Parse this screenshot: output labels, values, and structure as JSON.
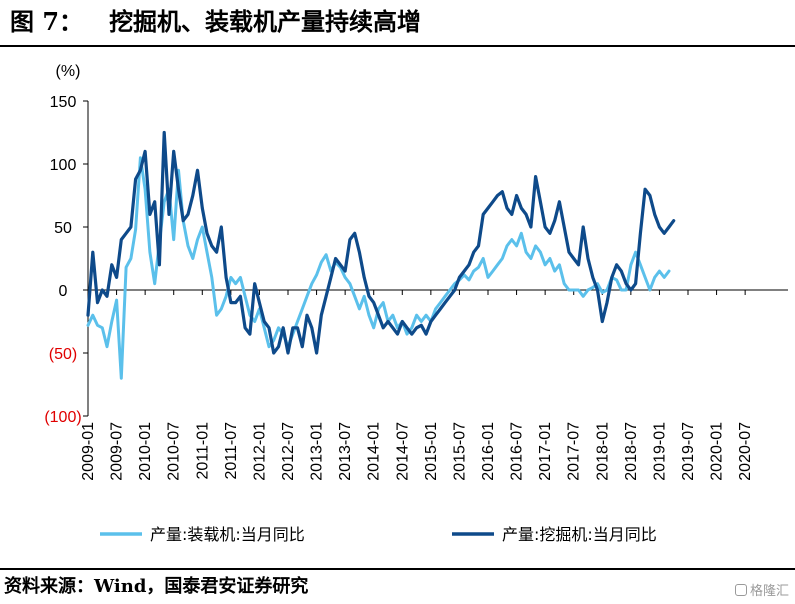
{
  "figure": {
    "label": "图 7：",
    "title": "挖掘机、装载机产量持续高增",
    "source": "资料来源：Wind，国泰君安证券研究",
    "watermark": "格隆汇"
  },
  "chart_data": {
    "type": "line",
    "title": "挖掘机、装载机产量持续高增",
    "ylabel": "(%)",
    "xlabel": "",
    "ylim": [
      -100,
      150
    ],
    "yticks": [
      -100,
      -50,
      0,
      50,
      100,
      150
    ],
    "ytick_labels": [
      "(100)",
      "(50)",
      "0",
      "50",
      "100",
      "150"
    ],
    "negative_tick_color": "#e00000",
    "xlim": [
      0,
      147
    ],
    "xtick_positions": [
      0,
      6,
      12,
      18,
      24,
      30,
      36,
      42,
      48,
      54,
      60,
      66,
      72,
      78,
      84,
      90,
      96,
      102,
      108,
      114,
      120,
      126,
      132,
      138
    ],
    "xtick_labels": [
      "2009-01",
      "2009-07",
      "2010-01",
      "2010-07",
      "2011-01",
      "2011-07",
      "2012-01",
      "2012-07",
      "2013-01",
      "2013-07",
      "2014-01",
      "2014-07",
      "2015-01",
      "2015-07",
      "2016-01",
      "2016-07",
      "2017-01",
      "2017-07",
      "2018-01",
      "2018-07",
      "2019-01",
      "2019-07",
      "2020-01",
      "2020-07"
    ],
    "grid": false,
    "legend_position": "bottom",
    "series": [
      {
        "name": "产量:装载机:当月同比",
        "color": "#5bc0eb",
        "points": [
          [
            0,
            -28
          ],
          [
            1,
            -20
          ],
          [
            2,
            -28
          ],
          [
            3,
            -30
          ],
          [
            4,
            -45
          ],
          [
            5,
            -25
          ],
          [
            6,
            -8
          ],
          [
            7,
            -70
          ],
          [
            8,
            18
          ],
          [
            9,
            25
          ],
          [
            10,
            48
          ],
          [
            11,
            105
          ],
          [
            12,
            80
          ],
          [
            13,
            30
          ],
          [
            14,
            5
          ],
          [
            15,
            38
          ],
          [
            16,
            70
          ],
          [
            17,
            80
          ],
          [
            18,
            40
          ],
          [
            19,
            95
          ],
          [
            20,
            55
          ],
          [
            21,
            35
          ],
          [
            22,
            25
          ],
          [
            23,
            40
          ],
          [
            24,
            50
          ],
          [
            25,
            30
          ],
          [
            26,
            10
          ],
          [
            27,
            -20
          ],
          [
            28,
            -15
          ],
          [
            29,
            -5
          ],
          [
            30,
            10
          ],
          [
            31,
            5
          ],
          [
            32,
            10
          ],
          [
            33,
            -5
          ],
          [
            34,
            -20
          ],
          [
            35,
            -25
          ],
          [
            36,
            -15
          ],
          [
            37,
            -30
          ],
          [
            38,
            -45
          ],
          [
            39,
            -40
          ],
          [
            40,
            -30
          ],
          [
            41,
            -35
          ],
          [
            42,
            -45
          ],
          [
            43,
            -35
          ],
          [
            44,
            -25
          ],
          [
            45,
            -15
          ],
          [
            46,
            -5
          ],
          [
            47,
            5
          ],
          [
            48,
            12
          ],
          [
            49,
            22
          ],
          [
            50,
            28
          ],
          [
            51,
            15
          ],
          [
            52,
            22
          ],
          [
            53,
            18
          ],
          [
            54,
            10
          ],
          [
            55,
            5
          ],
          [
            56,
            -5
          ],
          [
            57,
            -15
          ],
          [
            58,
            -5
          ],
          [
            59,
            -20
          ],
          [
            60,
            -30
          ],
          [
            61,
            -15
          ],
          [
            62,
            -10
          ],
          [
            63,
            -25
          ],
          [
            64,
            -20
          ],
          [
            65,
            -30
          ],
          [
            66,
            -25
          ],
          [
            67,
            -35
          ],
          [
            68,
            -30
          ],
          [
            69,
            -20
          ],
          [
            70,
            -25
          ],
          [
            71,
            -20
          ],
          [
            72,
            -25
          ],
          [
            73,
            -15
          ],
          [
            74,
            -10
          ],
          [
            75,
            -5
          ],
          [
            76,
            0
          ],
          [
            77,
            5
          ],
          [
            78,
            8
          ],
          [
            79,
            12
          ],
          [
            80,
            8
          ],
          [
            81,
            15
          ],
          [
            82,
            18
          ],
          [
            83,
            25
          ],
          [
            84,
            10
          ],
          [
            85,
            15
          ],
          [
            86,
            20
          ],
          [
            87,
            25
          ],
          [
            88,
            35
          ],
          [
            89,
            40
          ],
          [
            90,
            35
          ],
          [
            91,
            45
          ],
          [
            92,
            30
          ],
          [
            93,
            25
          ],
          [
            94,
            35
          ],
          [
            95,
            30
          ],
          [
            96,
            20
          ],
          [
            97,
            25
          ],
          [
            98,
            15
          ],
          [
            99,
            20
          ],
          [
            100,
            5
          ],
          [
            101,
            0
          ],
          [
            102,
            0
          ],
          [
            103,
            0
          ],
          [
            104,
            -5
          ],
          [
            105,
            0
          ],
          [
            106,
            2
          ],
          [
            107,
            5
          ],
          [
            108,
            -2
          ],
          [
            109,
            0
          ],
          [
            110,
            10
          ],
          [
            111,
            8
          ],
          [
            112,
            0
          ],
          [
            113,
            0
          ],
          [
            114,
            20
          ],
          [
            115,
            30
          ],
          [
            116,
            20
          ],
          [
            117,
            10
          ],
          [
            118,
            0
          ],
          [
            119,
            10
          ],
          [
            120,
            15
          ],
          [
            121,
            10
          ],
          [
            122,
            15
          ]
        ]
      },
      {
        "name": "产量:挖掘机:当月同比",
        "color": "#0e4a8a",
        "points": [
          [
            0,
            -20
          ],
          [
            1,
            30
          ],
          [
            2,
            -10
          ],
          [
            3,
            0
          ],
          [
            4,
            -5
          ],
          [
            5,
            20
          ],
          [
            6,
            10
          ],
          [
            7,
            40
          ],
          [
            8,
            45
          ],
          [
            9,
            50
          ],
          [
            10,
            88
          ],
          [
            11,
            95
          ],
          [
            12,
            110
          ],
          [
            13,
            60
          ],
          [
            14,
            70
          ],
          [
            15,
            20
          ],
          [
            16,
            125
          ],
          [
            17,
            60
          ],
          [
            18,
            110
          ],
          [
            19,
            80
          ],
          [
            20,
            55
          ],
          [
            21,
            60
          ],
          [
            22,
            75
          ],
          [
            23,
            95
          ],
          [
            24,
            65
          ],
          [
            25,
            45
          ],
          [
            26,
            35
          ],
          [
            27,
            30
          ],
          [
            28,
            50
          ],
          [
            29,
            10
          ],
          [
            30,
            -10
          ],
          [
            31,
            -10
          ],
          [
            32,
            -5
          ],
          [
            33,
            -30
          ],
          [
            34,
            -35
          ],
          [
            35,
            5
          ],
          [
            36,
            -10
          ],
          [
            37,
            -25
          ],
          [
            38,
            -30
          ],
          [
            39,
            -50
          ],
          [
            40,
            -45
          ],
          [
            41,
            -30
          ],
          [
            42,
            -50
          ],
          [
            43,
            -30
          ],
          [
            44,
            -30
          ],
          [
            45,
            -45
          ],
          [
            46,
            -20
          ],
          [
            47,
            -30
          ],
          [
            48,
            -50
          ],
          [
            49,
            -20
          ],
          [
            50,
            -5
          ],
          [
            51,
            10
          ],
          [
            52,
            25
          ],
          [
            53,
            20
          ],
          [
            54,
            15
          ],
          [
            55,
            40
          ],
          [
            56,
            45
          ],
          [
            57,
            30
          ],
          [
            58,
            10
          ],
          [
            59,
            -5
          ],
          [
            60,
            -10
          ],
          [
            61,
            -20
          ],
          [
            62,
            -30
          ],
          [
            63,
            -25
          ],
          [
            64,
            -30
          ],
          [
            65,
            -35
          ],
          [
            66,
            -25
          ],
          [
            67,
            -30
          ],
          [
            68,
            -35
          ],
          [
            69,
            -30
          ],
          [
            70,
            -28
          ],
          [
            71,
            -35
          ],
          [
            72,
            -25
          ],
          [
            73,
            -20
          ],
          [
            74,
            -15
          ],
          [
            75,
            -10
          ],
          [
            76,
            -5
          ],
          [
            77,
            0
          ],
          [
            78,
            10
          ],
          [
            79,
            15
          ],
          [
            80,
            20
          ],
          [
            81,
            30
          ],
          [
            82,
            35
          ],
          [
            83,
            60
          ],
          [
            84,
            65
          ],
          [
            85,
            70
          ],
          [
            86,
            75
          ],
          [
            87,
            78
          ],
          [
            88,
            65
          ],
          [
            89,
            60
          ],
          [
            90,
            75
          ],
          [
            91,
            65
          ],
          [
            92,
            60
          ],
          [
            93,
            50
          ],
          [
            94,
            90
          ],
          [
            95,
            70
          ],
          [
            96,
            50
          ],
          [
            97,
            45
          ],
          [
            98,
            55
          ],
          [
            99,
            70
          ],
          [
            100,
            50
          ],
          [
            101,
            30
          ],
          [
            102,
            25
          ],
          [
            103,
            20
          ],
          [
            104,
            50
          ],
          [
            105,
            25
          ],
          [
            106,
            10
          ],
          [
            107,
            0
          ],
          [
            108,
            -25
          ],
          [
            109,
            -10
          ],
          [
            110,
            10
          ],
          [
            111,
            20
          ],
          [
            112,
            15
          ],
          [
            113,
            5
          ],
          [
            114,
            0
          ],
          [
            115,
            5
          ],
          [
            116,
            45
          ],
          [
            117,
            80
          ],
          [
            118,
            75
          ],
          [
            119,
            60
          ],
          [
            120,
            50
          ],
          [
            121,
            45
          ],
          [
            122,
            50
          ],
          [
            123,
            55
          ]
        ]
      }
    ]
  }
}
